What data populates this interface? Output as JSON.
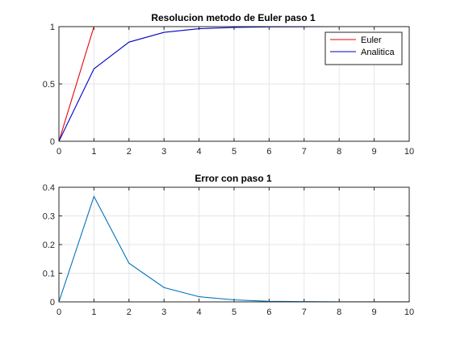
{
  "chart_data": [
    {
      "type": "line",
      "title": "Resolucion metodo de Euler paso 1",
      "xlabel": "",
      "ylabel": "",
      "xlim": [
        0,
        10
      ],
      "ylim": [
        0,
        1
      ],
      "xticks": [
        0,
        1,
        2,
        3,
        4,
        5,
        6,
        7,
        8,
        9,
        10
      ],
      "yticks": [
        0,
        0.5,
        1
      ],
      "grid": true,
      "legend_location": "top-right",
      "x": [
        0,
        1,
        2,
        3,
        4,
        5,
        6,
        7,
        8,
        9,
        10
      ],
      "series": [
        {
          "name": "Euler",
          "color": "#e8000b",
          "values": [
            0,
            1,
            1,
            1,
            1,
            1,
            1,
            1,
            1,
            1,
            1
          ]
        },
        {
          "name": "Analitica",
          "color": "#0000c8",
          "values": [
            0,
            0.632,
            0.865,
            0.95,
            0.982,
            0.993,
            0.998,
            0.999,
            1.0,
            1.0,
            1.0
          ]
        }
      ]
    },
    {
      "type": "line",
      "title": "Error con paso 1",
      "xlabel": "",
      "ylabel": "",
      "xlim": [
        0,
        10
      ],
      "ylim": [
        0,
        0.4
      ],
      "xticks": [
        0,
        1,
        2,
        3,
        4,
        5,
        6,
        7,
        8,
        9,
        10
      ],
      "yticks": [
        0,
        0.1,
        0.2,
        0.3,
        0.4
      ],
      "grid": true,
      "x": [
        0,
        1,
        2,
        3,
        4,
        5,
        6,
        7,
        8,
        9,
        10
      ],
      "series": [
        {
          "color": "#0072bd",
          "values": [
            0,
            0.368,
            0.135,
            0.05,
            0.018,
            0.007,
            0.002,
            0.001,
            0.0003,
            0.0001,
            5e-05
          ]
        }
      ]
    }
  ]
}
